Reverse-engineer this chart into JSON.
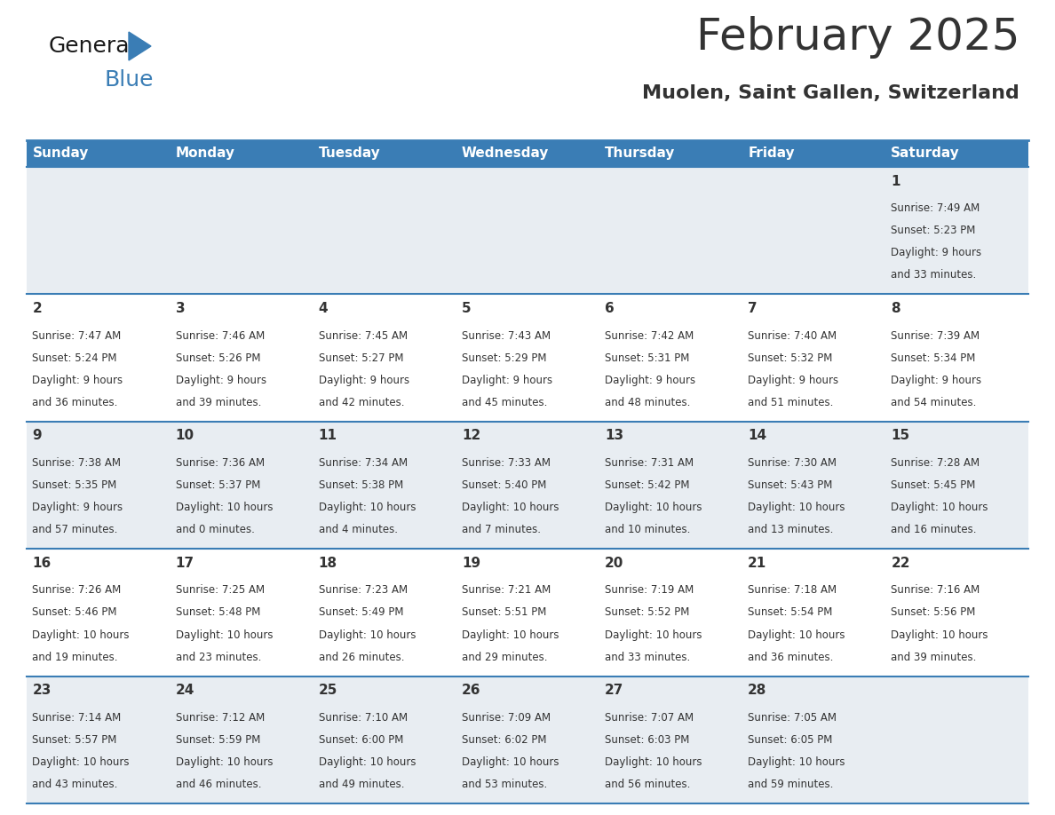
{
  "title": "February 2025",
  "subtitle": "Muolen, Saint Gallen, Switzerland",
  "header_color": "#3a7db5",
  "header_text_color": "#ffffff",
  "days_of_week": [
    "Sunday",
    "Monday",
    "Tuesday",
    "Wednesday",
    "Thursday",
    "Friday",
    "Saturday"
  ],
  "background_color": "#ffffff",
  "cell_bg_gray": "#e8edf2",
  "cell_bg_white": "#ffffff",
  "border_color": "#3a7db5",
  "text_color": "#333333",
  "day_num_color": "#333333",
  "calendar_data": [
    [
      null,
      null,
      null,
      null,
      null,
      null,
      {
        "day": 1,
        "sunrise": "7:49 AM",
        "sunset": "5:23 PM",
        "daylight": "9 hours and 33 minutes."
      }
    ],
    [
      {
        "day": 2,
        "sunrise": "7:47 AM",
        "sunset": "5:24 PM",
        "daylight": "9 hours and 36 minutes."
      },
      {
        "day": 3,
        "sunrise": "7:46 AM",
        "sunset": "5:26 PM",
        "daylight": "9 hours and 39 minutes."
      },
      {
        "day": 4,
        "sunrise": "7:45 AM",
        "sunset": "5:27 PM",
        "daylight": "9 hours and 42 minutes."
      },
      {
        "day": 5,
        "sunrise": "7:43 AM",
        "sunset": "5:29 PM",
        "daylight": "9 hours and 45 minutes."
      },
      {
        "day": 6,
        "sunrise": "7:42 AM",
        "sunset": "5:31 PM",
        "daylight": "9 hours and 48 minutes."
      },
      {
        "day": 7,
        "sunrise": "7:40 AM",
        "sunset": "5:32 PM",
        "daylight": "9 hours and 51 minutes."
      },
      {
        "day": 8,
        "sunrise": "7:39 AM",
        "sunset": "5:34 PM",
        "daylight": "9 hours and 54 minutes."
      }
    ],
    [
      {
        "day": 9,
        "sunrise": "7:38 AM",
        "sunset": "5:35 PM",
        "daylight": "9 hours and 57 minutes."
      },
      {
        "day": 10,
        "sunrise": "7:36 AM",
        "sunset": "5:37 PM",
        "daylight": "10 hours and 0 minutes."
      },
      {
        "day": 11,
        "sunrise": "7:34 AM",
        "sunset": "5:38 PM",
        "daylight": "10 hours and 4 minutes."
      },
      {
        "day": 12,
        "sunrise": "7:33 AM",
        "sunset": "5:40 PM",
        "daylight": "10 hours and 7 minutes."
      },
      {
        "day": 13,
        "sunrise": "7:31 AM",
        "sunset": "5:42 PM",
        "daylight": "10 hours and 10 minutes."
      },
      {
        "day": 14,
        "sunrise": "7:30 AM",
        "sunset": "5:43 PM",
        "daylight": "10 hours and 13 minutes."
      },
      {
        "day": 15,
        "sunrise": "7:28 AM",
        "sunset": "5:45 PM",
        "daylight": "10 hours and 16 minutes."
      }
    ],
    [
      {
        "day": 16,
        "sunrise": "7:26 AM",
        "sunset": "5:46 PM",
        "daylight": "10 hours and 19 minutes."
      },
      {
        "day": 17,
        "sunrise": "7:25 AM",
        "sunset": "5:48 PM",
        "daylight": "10 hours and 23 minutes."
      },
      {
        "day": 18,
        "sunrise": "7:23 AM",
        "sunset": "5:49 PM",
        "daylight": "10 hours and 26 minutes."
      },
      {
        "day": 19,
        "sunrise": "7:21 AM",
        "sunset": "5:51 PM",
        "daylight": "10 hours and 29 minutes."
      },
      {
        "day": 20,
        "sunrise": "7:19 AM",
        "sunset": "5:52 PM",
        "daylight": "10 hours and 33 minutes."
      },
      {
        "day": 21,
        "sunrise": "7:18 AM",
        "sunset": "5:54 PM",
        "daylight": "10 hours and 36 minutes."
      },
      {
        "day": 22,
        "sunrise": "7:16 AM",
        "sunset": "5:56 PM",
        "daylight": "10 hours and 39 minutes."
      }
    ],
    [
      {
        "day": 23,
        "sunrise": "7:14 AM",
        "sunset": "5:57 PM",
        "daylight": "10 hours and 43 minutes."
      },
      {
        "day": 24,
        "sunrise": "7:12 AM",
        "sunset": "5:59 PM",
        "daylight": "10 hours and 46 minutes."
      },
      {
        "day": 25,
        "sunrise": "7:10 AM",
        "sunset": "6:00 PM",
        "daylight": "10 hours and 49 minutes."
      },
      {
        "day": 26,
        "sunrise": "7:09 AM",
        "sunset": "6:02 PM",
        "daylight": "10 hours and 53 minutes."
      },
      {
        "day": 27,
        "sunrise": "7:07 AM",
        "sunset": "6:03 PM",
        "daylight": "10 hours and 56 minutes."
      },
      {
        "day": 28,
        "sunrise": "7:05 AM",
        "sunset": "6:05 PM",
        "daylight": "10 hours and 59 minutes."
      },
      null
    ]
  ],
  "row_bg": [
    "#e8edf2",
    "#ffffff",
    "#e8edf2",
    "#ffffff",
    "#e8edf2"
  ],
  "logo_color_general": "#1a1a1a",
  "logo_color_blue": "#3a7db5",
  "title_fontsize": 36,
  "subtitle_fontsize": 16,
  "dayname_fontsize": 11,
  "daynum_fontsize": 11,
  "cell_fontsize": 8.5
}
